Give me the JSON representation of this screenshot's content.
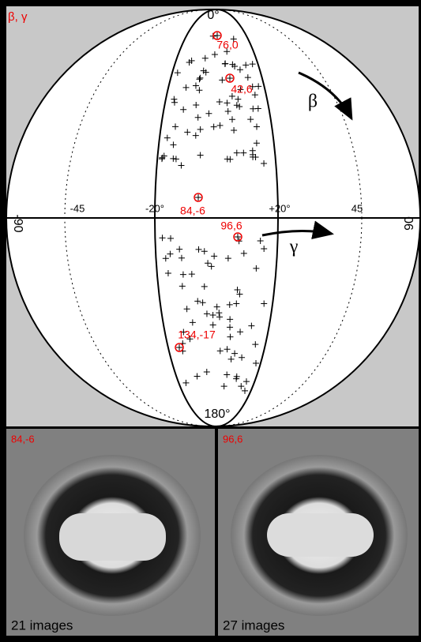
{
  "plot": {
    "corner_label": "β, γ",
    "top_label": "0°",
    "bottom_label": "180°",
    "left_label": "-90",
    "right_label": "90",
    "axis_labels": [
      "-45",
      "-20°",
      "+20°",
      "45"
    ],
    "beta": "β",
    "gamma": "γ",
    "points": [
      {
        "label": "76,0"
      },
      {
        "label": "42,6"
      },
      {
        "label": "84,-6"
      },
      {
        "label": "96,6"
      },
      {
        "label": "134,-17"
      }
    ]
  },
  "class_averages": [
    {
      "label": "84,-6",
      "count": "21 images"
    },
    {
      "label": "96,6",
      "count": "27 images"
    }
  ]
}
